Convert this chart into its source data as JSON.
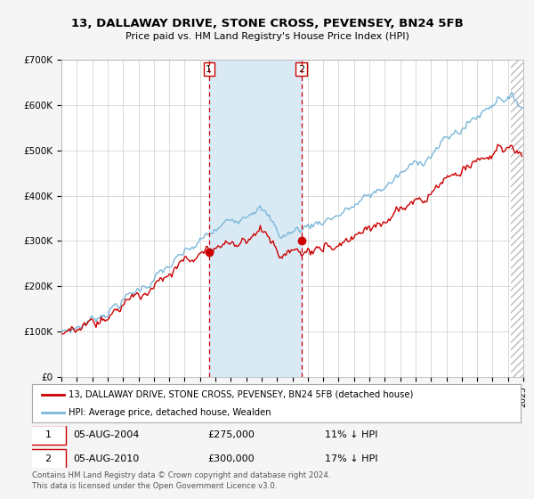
{
  "title": "13, DALLAWAY DRIVE, STONE CROSS, PEVENSEY, BN24 5FB",
  "subtitle": "Price paid vs. HM Land Registry's House Price Index (HPI)",
  "legend_line1": "13, DALLAWAY DRIVE, STONE CROSS, PEVENSEY, BN24 5FB (detached house)",
  "legend_line2": "HPI: Average price, detached house, Wealden",
  "annotation1_date": "05-AUG-2004",
  "annotation1_price": "£275,000",
  "annotation1_hpi": "11% ↓ HPI",
  "annotation2_date": "05-AUG-2010",
  "annotation2_price": "£300,000",
  "annotation2_hpi": "17% ↓ HPI",
  "footnote1": "Contains HM Land Registry data © Crown copyright and database right 2024.",
  "footnote2": "This data is licensed under the Open Government Licence v3.0.",
  "sale1_x": 2004.583,
  "sale1_y": 275000,
  "sale2_x": 2010.583,
  "sale2_y": 300000,
  "xlim": [
    1995,
    2025
  ],
  "ylim": [
    0,
    700000
  ],
  "hpi_color": "#7ab8d9",
  "price_color": "#cc0000",
  "shade_color": "#daeaf5",
  "dashed_color": "#cc0000",
  "bg_color": "#f5f5f5",
  "plot_bg": "#ffffff",
  "grid_color": "#cccccc"
}
